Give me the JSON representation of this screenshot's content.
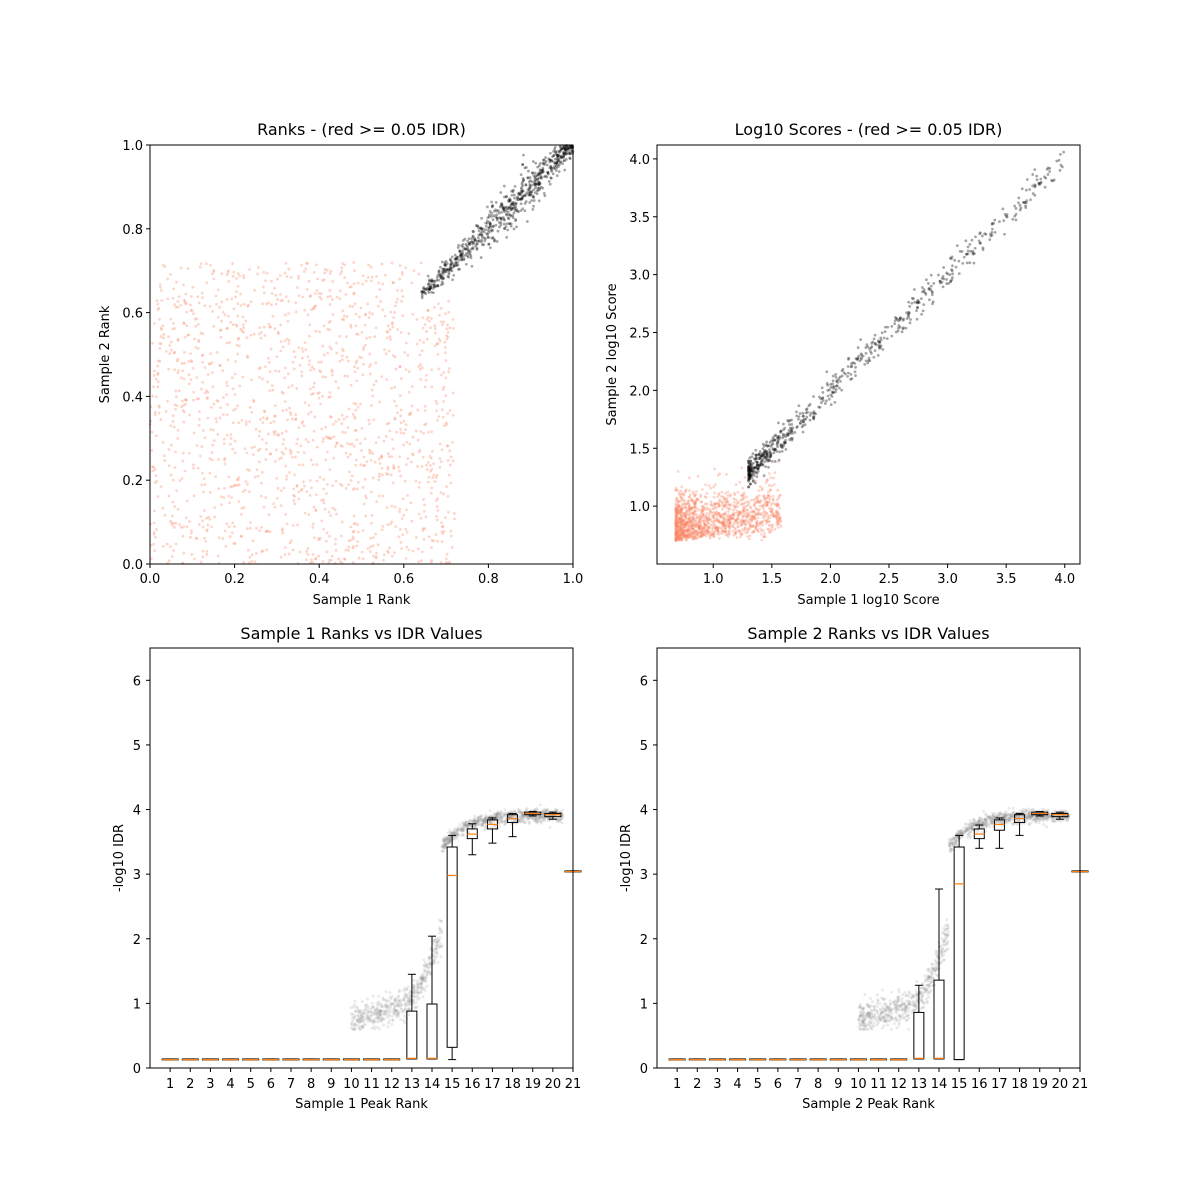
{
  "chart_data": [
    {
      "type": "scatter",
      "title": "Ranks - (red >= 0.05 IDR)",
      "xlabel": "Sample 1 Rank",
      "ylabel": "Sample 2 Rank",
      "xlim": [
        0,
        1
      ],
      "ylim": [
        0,
        1
      ],
      "xticks": [
        "0.0",
        "0.2",
        "0.4",
        "0.6",
        "0.8",
        "1.0"
      ],
      "yticks": [
        "0.0",
        "0.2",
        "0.4",
        "0.6",
        "0.8",
        "1.0"
      ],
      "series": [
        {
          "color": "#fa8a6a",
          "description_values": "low-rank points (IDR >= 0.05) scattered uniformly in x 0-0.72, y 0-0.72",
          "values": [
            [
              0.05,
              0.12
            ],
            [
              0.12,
              0.45
            ],
            [
              0.2,
              0.3
            ],
            [
              0.3,
              0.62
            ],
            [
              0.42,
              0.2
            ],
            [
              0.55,
              0.5
            ],
            [
              0.65,
              0.35
            ],
            [
              0.7,
              0.68
            ],
            [
              0.1,
              0.7
            ],
            [
              0.35,
              0.05
            ],
            [
              0.6,
              0.1
            ],
            [
              0.25,
              0.55
            ]
          ]
        },
        {
          "color": "#000000",
          "description_values": "high-rank points (IDR < 0.05) along the diagonal from ~0.65 to 1.0",
          "values": [
            [
              0.66,
              0.68
            ],
            [
              0.72,
              0.74
            ],
            [
              0.78,
              0.8
            ],
            [
              0.82,
              0.84
            ],
            [
              0.86,
              0.86
            ],
            [
              0.9,
              0.9
            ],
            [
              0.94,
              0.95
            ],
            [
              1.0,
              1.0
            ]
          ]
        }
      ],
      "grid": false
    },
    {
      "type": "scatter",
      "title": "Log10 Scores - (red >= 0.05 IDR)",
      "xlabel": "Sample 1 log10 Score",
      "ylabel": "Sample 2 log10 Score",
      "xlim": [
        0.52,
        4.13
      ],
      "ylim": [
        0.5,
        4.12
      ],
      "xticks": [
        "1.0",
        "1.5",
        "2.0",
        "2.5",
        "3.0",
        "3.5",
        "4.0"
      ],
      "yticks": [
        "1.0",
        "1.5",
        "2.0",
        "2.5",
        "3.0",
        "3.5",
        "4.0"
      ],
      "series": [
        {
          "color": "#fa8a6a",
          "values": [
            [
              0.7,
              0.7
            ],
            [
              0.8,
              0.9
            ],
            [
              0.9,
              0.75
            ],
            [
              1.0,
              1.1
            ],
            [
              1.1,
              0.9
            ],
            [
              0.75,
              1.3
            ],
            [
              1.2,
              1.2
            ],
            [
              1.4,
              1.0
            ]
          ]
        },
        {
          "color": "#000000",
          "values": [
            [
              1.3,
              1.3
            ],
            [
              1.6,
              1.7
            ],
            [
              1.8,
              1.8
            ],
            [
              2.0,
              2.0
            ],
            [
              2.3,
              2.2
            ],
            [
              2.6,
              2.6
            ],
            [
              2.9,
              2.9
            ],
            [
              3.3,
              3.3
            ],
            [
              3.6,
              3.6
            ],
            [
              3.95,
              3.95
            ]
          ]
        }
      ],
      "grid": false
    },
    {
      "type": "box",
      "title": "Sample 1 Ranks vs IDR Values",
      "xlabel": "Sample 1 Peak Rank",
      "ylabel": "-log10 IDR",
      "xlim": [
        0,
        21
      ],
      "ylim": [
        0,
        6.5
      ],
      "xticks": [
        "1",
        "2",
        "3",
        "4",
        "5",
        "6",
        "7",
        "8",
        "9",
        "10",
        "11",
        "12",
        "13",
        "14",
        "15",
        "16",
        "17",
        "18",
        "19",
        "20",
        "21"
      ],
      "yticks": [
        "0",
        "1",
        "2",
        "3",
        "4",
        "5",
        "6"
      ],
      "boxes": [
        {
          "pos": 1,
          "q1": 0.13,
          "med": 0.13,
          "q3": 0.14,
          "lo": 0.13,
          "hi": 0.14
        },
        {
          "pos": 2,
          "q1": 0.13,
          "med": 0.13,
          "q3": 0.14,
          "lo": 0.13,
          "hi": 0.14
        },
        {
          "pos": 3,
          "q1": 0.13,
          "med": 0.13,
          "q3": 0.14,
          "lo": 0.13,
          "hi": 0.14
        },
        {
          "pos": 4,
          "q1": 0.13,
          "med": 0.13,
          "q3": 0.14,
          "lo": 0.13,
          "hi": 0.14
        },
        {
          "pos": 5,
          "q1": 0.13,
          "med": 0.13,
          "q3": 0.14,
          "lo": 0.13,
          "hi": 0.14
        },
        {
          "pos": 6,
          "q1": 0.13,
          "med": 0.13,
          "q3": 0.14,
          "lo": 0.13,
          "hi": 0.14
        },
        {
          "pos": 7,
          "q1": 0.13,
          "med": 0.13,
          "q3": 0.14,
          "lo": 0.13,
          "hi": 0.14
        },
        {
          "pos": 8,
          "q1": 0.13,
          "med": 0.13,
          "q3": 0.14,
          "lo": 0.13,
          "hi": 0.14
        },
        {
          "pos": 9,
          "q1": 0.13,
          "med": 0.13,
          "q3": 0.14,
          "lo": 0.13,
          "hi": 0.14
        },
        {
          "pos": 10,
          "q1": 0.13,
          "med": 0.13,
          "q3": 0.14,
          "lo": 0.13,
          "hi": 0.14
        },
        {
          "pos": 11,
          "q1": 0.13,
          "med": 0.13,
          "q3": 0.14,
          "lo": 0.13,
          "hi": 0.14
        },
        {
          "pos": 12,
          "q1": 0.13,
          "med": 0.13,
          "q3": 0.14,
          "lo": 0.13,
          "hi": 0.14
        },
        {
          "pos": 13,
          "q1": 0.14,
          "med": 0.15,
          "q3": 0.88,
          "lo": 0.14,
          "hi": 1.45
        },
        {
          "pos": 14,
          "q1": 0.14,
          "med": 0.15,
          "q3": 0.99,
          "lo": 0.14,
          "hi": 2.04
        },
        {
          "pos": 15,
          "q1": 0.32,
          "med": 2.98,
          "q3": 3.42,
          "lo": 0.13,
          "hi": 3.6
        },
        {
          "pos": 16,
          "q1": 3.55,
          "med": 3.62,
          "q3": 3.7,
          "lo": 3.3,
          "hi": 3.78
        },
        {
          "pos": 17,
          "q1": 3.7,
          "med": 3.77,
          "q3": 3.84,
          "lo": 3.48,
          "hi": 3.87
        },
        {
          "pos": 18,
          "q1": 3.8,
          "med": 3.86,
          "q3": 3.92,
          "lo": 3.58,
          "hi": 3.94
        },
        {
          "pos": 19,
          "q1": 3.92,
          "med": 3.94,
          "q3": 3.96,
          "lo": 3.9,
          "hi": 3.97
        },
        {
          "pos": 20,
          "q1": 3.89,
          "med": 3.92,
          "q3": 3.94,
          "lo": 3.85,
          "hi": 3.96
        },
        {
          "pos": 21,
          "q1": 3.04,
          "med": 3.04,
          "q3": 3.05,
          "lo": 3.04,
          "hi": 3.05
        }
      ],
      "grid": false
    },
    {
      "type": "box",
      "title": "Sample 2 Ranks vs IDR Values",
      "xlabel": "Sample 2 Peak Rank",
      "ylabel": "-log10 IDR",
      "xlim": [
        0,
        21
      ],
      "ylim": [
        0,
        6.5
      ],
      "xticks": [
        "1",
        "2",
        "3",
        "4",
        "5",
        "6",
        "7",
        "8",
        "9",
        "10",
        "11",
        "12",
        "13",
        "14",
        "15",
        "16",
        "17",
        "18",
        "19",
        "20",
        "21"
      ],
      "yticks": [
        "0",
        "1",
        "2",
        "3",
        "4",
        "5",
        "6"
      ],
      "boxes": [
        {
          "pos": 1,
          "q1": 0.13,
          "med": 0.13,
          "q3": 0.14,
          "lo": 0.13,
          "hi": 0.14
        },
        {
          "pos": 2,
          "q1": 0.13,
          "med": 0.13,
          "q3": 0.14,
          "lo": 0.13,
          "hi": 0.14
        },
        {
          "pos": 3,
          "q1": 0.13,
          "med": 0.13,
          "q3": 0.14,
          "lo": 0.13,
          "hi": 0.14
        },
        {
          "pos": 4,
          "q1": 0.13,
          "med": 0.13,
          "q3": 0.14,
          "lo": 0.13,
          "hi": 0.14
        },
        {
          "pos": 5,
          "q1": 0.13,
          "med": 0.13,
          "q3": 0.14,
          "lo": 0.13,
          "hi": 0.14
        },
        {
          "pos": 6,
          "q1": 0.13,
          "med": 0.13,
          "q3": 0.14,
          "lo": 0.13,
          "hi": 0.14
        },
        {
          "pos": 7,
          "q1": 0.13,
          "med": 0.13,
          "q3": 0.14,
          "lo": 0.13,
          "hi": 0.14
        },
        {
          "pos": 8,
          "q1": 0.13,
          "med": 0.13,
          "q3": 0.14,
          "lo": 0.13,
          "hi": 0.14
        },
        {
          "pos": 9,
          "q1": 0.13,
          "med": 0.13,
          "q3": 0.14,
          "lo": 0.13,
          "hi": 0.14
        },
        {
          "pos": 10,
          "q1": 0.13,
          "med": 0.13,
          "q3": 0.14,
          "lo": 0.13,
          "hi": 0.14
        },
        {
          "pos": 11,
          "q1": 0.13,
          "med": 0.13,
          "q3": 0.14,
          "lo": 0.13,
          "hi": 0.14
        },
        {
          "pos": 12,
          "q1": 0.13,
          "med": 0.13,
          "q3": 0.14,
          "lo": 0.13,
          "hi": 0.14
        },
        {
          "pos": 13,
          "q1": 0.14,
          "med": 0.15,
          "q3": 0.86,
          "lo": 0.14,
          "hi": 1.28
        },
        {
          "pos": 14,
          "q1": 0.14,
          "med": 0.15,
          "q3": 1.36,
          "lo": 0.14,
          "hi": 2.77
        },
        {
          "pos": 15,
          "q1": 0.13,
          "med": 2.85,
          "q3": 3.42,
          "lo": 0.13,
          "hi": 3.6
        },
        {
          "pos": 16,
          "q1": 3.55,
          "med": 3.62,
          "q3": 3.7,
          "lo": 3.4,
          "hi": 3.76
        },
        {
          "pos": 17,
          "q1": 3.68,
          "med": 3.77,
          "q3": 3.84,
          "lo": 3.4,
          "hi": 3.87
        },
        {
          "pos": 18,
          "q1": 3.8,
          "med": 3.86,
          "q3": 3.92,
          "lo": 3.6,
          "hi": 3.94
        },
        {
          "pos": 19,
          "q1": 3.92,
          "med": 3.94,
          "q3": 3.96,
          "lo": 3.9,
          "hi": 3.97
        },
        {
          "pos": 20,
          "q1": 3.89,
          "med": 3.92,
          "q3": 3.94,
          "lo": 3.85,
          "hi": 3.96
        },
        {
          "pos": 21,
          "q1": 3.04,
          "med": 3.04,
          "q3": 3.05,
          "lo": 3.04,
          "hi": 3.05
        }
      ],
      "grid": false
    }
  ],
  "colors": {
    "low_confidence": "#fa8a6a",
    "high_confidence": "#000000",
    "median": "#ff7f0e"
  }
}
